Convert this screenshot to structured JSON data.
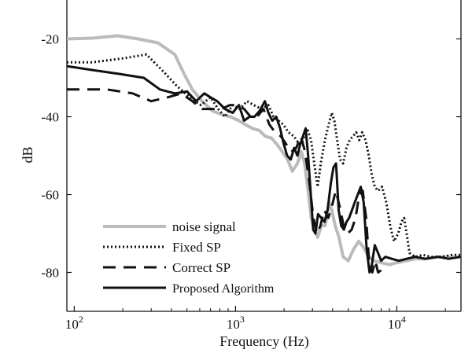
{
  "chart_data": {
    "type": "line",
    "title": "",
    "xlabel": "Frequency (Hz)",
    "ylabel": "dB",
    "xscale": "log",
    "xlim": [
      90,
      25000
    ],
    "ylim": [
      -90,
      -10
    ],
    "x_ticks": [
      {
        "value": 100,
        "base": "10",
        "exp": "2"
      },
      {
        "value": 1000,
        "base": "10",
        "exp": "3"
      },
      {
        "value": 10000,
        "base": "10",
        "exp": "4"
      }
    ],
    "y_ticks": [
      {
        "value": -20,
        "label": "-20"
      },
      {
        "value": -40,
        "label": "-40"
      },
      {
        "value": -60,
        "label": "-60"
      },
      {
        "value": -80,
        "label": "-80"
      }
    ],
    "grid": false,
    "legend_position": "bottom-left",
    "series": [
      {
        "name": "noise signal",
        "style": "solid",
        "color": "#bbbbbb",
        "width": 4,
        "points": [
          [
            90,
            -20
          ],
          [
            130,
            -19.8
          ],
          [
            185,
            -19.2
          ],
          [
            250,
            -20
          ],
          [
            330,
            -21
          ],
          [
            420,
            -24
          ],
          [
            480,
            -29
          ],
          [
            540,
            -33
          ],
          [
            620,
            -36
          ],
          [
            720,
            -38.5
          ],
          [
            830,
            -39.5
          ],
          [
            930,
            -40
          ],
          [
            1050,
            -41
          ],
          [
            1150,
            -42
          ],
          [
            1270,
            -43
          ],
          [
            1400,
            -43.5
          ],
          [
            1530,
            -45
          ],
          [
            1670,
            -45.5
          ],
          [
            1800,
            -47
          ],
          [
            1950,
            -49
          ],
          [
            2100,
            -51
          ],
          [
            2250,
            -54
          ],
          [
            2420,
            -52
          ],
          [
            2560,
            -49
          ],
          [
            2680,
            -52
          ],
          [
            2800,
            -58
          ],
          [
            2950,
            -66
          ],
          [
            3080,
            -69
          ],
          [
            3230,
            -71
          ],
          [
            3400,
            -68
          ],
          [
            3600,
            -68
          ],
          [
            3800,
            -62
          ],
          [
            3950,
            -64
          ],
          [
            4150,
            -68
          ],
          [
            4380,
            -71
          ],
          [
            4650,
            -76
          ],
          [
            5000,
            -77
          ],
          [
            5400,
            -74
          ],
          [
            5800,
            -72
          ],
          [
            6200,
            -73.5
          ],
          [
            6700,
            -76
          ],
          [
            7200,
            -77
          ],
          [
            8000,
            -77.5
          ],
          [
            9000,
            -78
          ],
          [
            10000,
            -77.5
          ],
          [
            11500,
            -77
          ],
          [
            13000,
            -76.5
          ],
          [
            15000,
            -76.5
          ],
          [
            18000,
            -76
          ],
          [
            21000,
            -76
          ],
          [
            25000,
            -76
          ]
        ]
      },
      {
        "name": "Fixed SP",
        "style": "dotted",
        "color": "#111111",
        "width": 3,
        "points": [
          [
            90,
            -26
          ],
          [
            130,
            -26
          ],
          [
            200,
            -25
          ],
          [
            280,
            -24
          ],
          [
            350,
            -28
          ],
          [
            430,
            -32
          ],
          [
            520,
            -35
          ],
          [
            610,
            -37
          ],
          [
            700,
            -35
          ],
          [
            780,
            -38
          ],
          [
            860,
            -40
          ],
          [
            960,
            -37
          ],
          [
            1060,
            -38
          ],
          [
            1180,
            -36
          ],
          [
            1300,
            -37
          ],
          [
            1450,
            -38
          ],
          [
            1600,
            -37
          ],
          [
            1720,
            -40
          ],
          [
            1850,
            -41
          ],
          [
            1980,
            -42
          ],
          [
            2130,
            -44
          ],
          [
            2300,
            -45
          ],
          [
            2480,
            -47
          ],
          [
            2620,
            -46
          ],
          [
            2780,
            -43
          ],
          [
            2940,
            -46
          ],
          [
            3100,
            -53
          ],
          [
            3230,
            -58
          ],
          [
            3380,
            -52
          ],
          [
            3580,
            -46
          ],
          [
            3780,
            -42
          ],
          [
            3950,
            -39
          ],
          [
            4100,
            -41
          ],
          [
            4270,
            -46
          ],
          [
            4450,
            -51
          ],
          [
            4650,
            -52
          ],
          [
            4870,
            -48
          ],
          [
            5100,
            -46
          ],
          [
            5350,
            -45
          ],
          [
            5600,
            -44
          ],
          [
            5850,
            -46
          ],
          [
            6100,
            -44
          ],
          [
            6400,
            -46
          ],
          [
            6700,
            -50
          ],
          [
            7000,
            -55
          ],
          [
            7300,
            -58
          ],
          [
            7650,
            -59
          ],
          [
            8100,
            -58
          ],
          [
            8600,
            -62
          ],
          [
            9100,
            -68
          ],
          [
            9600,
            -72
          ],
          [
            10200,
            -70
          ],
          [
            10700,
            -67
          ],
          [
            11100,
            -66
          ],
          [
            11500,
            -70
          ],
          [
            12000,
            -75
          ],
          [
            13000,
            -76
          ],
          [
            14500,
            -75.5
          ],
          [
            16500,
            -76
          ],
          [
            19000,
            -76
          ],
          [
            22000,
            -75.5
          ],
          [
            25000,
            -75.5
          ]
        ]
      },
      {
        "name": "Correct SP",
        "style": "dashed",
        "color": "#111111",
        "width": 3,
        "points": [
          [
            90,
            -33
          ],
          [
            160,
            -33
          ],
          [
            230,
            -34
          ],
          [
            300,
            -36
          ],
          [
            380,
            -35
          ],
          [
            460,
            -34
          ],
          [
            540,
            -36
          ],
          [
            620,
            -38
          ],
          [
            720,
            -38
          ],
          [
            820,
            -38
          ],
          [
            920,
            -37
          ],
          [
            1020,
            -37
          ],
          [
            1130,
            -38
          ],
          [
            1240,
            -40
          ],
          [
            1360,
            -40
          ],
          [
            1490,
            -38
          ],
          [
            1620,
            -42
          ],
          [
            1760,
            -44
          ],
          [
            1910,
            -45
          ],
          [
            2060,
            -47
          ],
          [
            2220,
            -49
          ],
          [
            2380,
            -48
          ],
          [
            2540,
            -45
          ],
          [
            2700,
            -49
          ],
          [
            2870,
            -57
          ],
          [
            3040,
            -66
          ],
          [
            3200,
            -70
          ],
          [
            3360,
            -68
          ],
          [
            3550,
            -64
          ],
          [
            3760,
            -66
          ],
          [
            3960,
            -63
          ],
          [
            4180,
            -59
          ],
          [
            4420,
            -63
          ],
          [
            4680,
            -68
          ],
          [
            4960,
            -70
          ],
          [
            5250,
            -69
          ],
          [
            5550,
            -66
          ],
          [
            5850,
            -60
          ],
          [
            6150,
            -59
          ],
          [
            6450,
            -66
          ],
          [
            6750,
            -78
          ],
          [
            7050,
            -80
          ],
          [
            7350,
            -77
          ],
          [
            7650,
            -80
          ],
          [
            7950,
            -79.5
          ],
          [
            8300,
            -78
          ]
        ]
      },
      {
        "name": "Proposed Algorithm",
        "style": "solid",
        "color": "#111111",
        "width": 3,
        "points": [
          [
            90,
            -27
          ],
          [
            130,
            -28
          ],
          [
            190,
            -29
          ],
          [
            270,
            -30
          ],
          [
            340,
            -33
          ],
          [
            420,
            -34
          ],
          [
            500,
            -33.5
          ],
          [
            570,
            -36
          ],
          [
            640,
            -34
          ],
          [
            700,
            -35
          ],
          [
            770,
            -36
          ],
          [
            860,
            -38
          ],
          [
            960,
            -39
          ],
          [
            1050,
            -37
          ],
          [
            1130,
            -41
          ],
          [
            1220,
            -40
          ],
          [
            1310,
            -40
          ],
          [
            1410,
            -38.5
          ],
          [
            1520,
            -36
          ],
          [
            1600,
            -39
          ],
          [
            1690,
            -41
          ],
          [
            1790,
            -40
          ],
          [
            1890,
            -43
          ],
          [
            1990,
            -47
          ],
          [
            2090,
            -50
          ],
          [
            2200,
            -51
          ],
          [
            2310,
            -48
          ],
          [
            2420,
            -50
          ],
          [
            2520,
            -47
          ],
          [
            2620,
            -45
          ],
          [
            2720,
            -43
          ],
          [
            2820,
            -50
          ],
          [
            2930,
            -60
          ],
          [
            3030,
            -69
          ],
          [
            3130,
            -70
          ],
          [
            3250,
            -65
          ],
          [
            3400,
            -66
          ],
          [
            3560,
            -67
          ],
          [
            3720,
            -64
          ],
          [
            3900,
            -57
          ],
          [
            4050,
            -53
          ],
          [
            4200,
            -52
          ],
          [
            4360,
            -64
          ],
          [
            4520,
            -68
          ],
          [
            4700,
            -69
          ],
          [
            4880,
            -67
          ],
          [
            5060,
            -66
          ],
          [
            5270,
            -64
          ],
          [
            5490,
            -62
          ],
          [
            5730,
            -60
          ],
          [
            5980,
            -58
          ],
          [
            6230,
            -62
          ],
          [
            6500,
            -74
          ],
          [
            6770,
            -80
          ],
          [
            7000,
            -78
          ],
          [
            7300,
            -73
          ],
          [
            7650,
            -75
          ],
          [
            8000,
            -77
          ],
          [
            8500,
            -76
          ],
          [
            9300,
            -76.5
          ],
          [
            10300,
            -77
          ],
          [
            11500,
            -76.5
          ],
          [
            13000,
            -76
          ],
          [
            15000,
            -76.5
          ],
          [
            18000,
            -76
          ],
          [
            21000,
            -76.5
          ],
          [
            25000,
            -76
          ]
        ]
      }
    ]
  }
}
